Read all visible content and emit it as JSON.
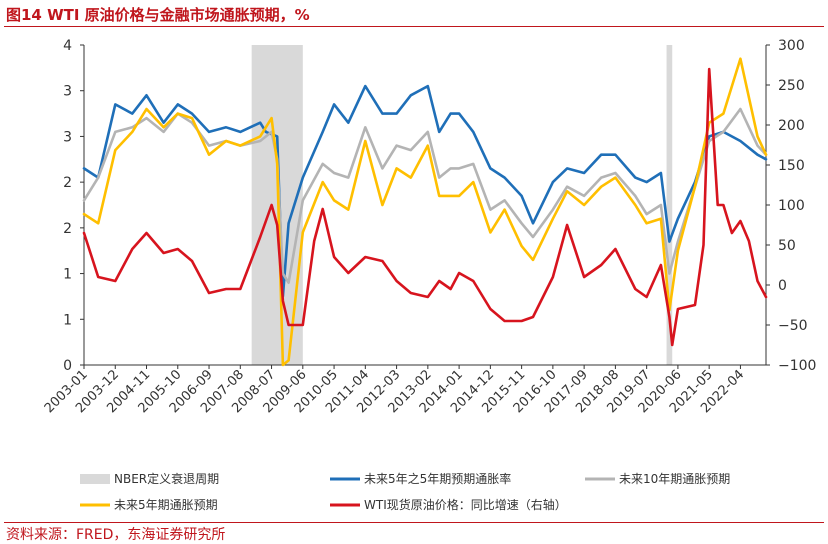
{
  "header": {
    "title": "图14 WTI 原油价格与金融市场通胀预期，%"
  },
  "footer": {
    "source": "资料来源：FRED，东海证券研究所"
  },
  "chart_data": {
    "type": "line",
    "x_tick_labels": [
      "2003-01",
      "2003-12",
      "2004-11",
      "2005-10",
      "2006-09",
      "2007-08",
      "2008-07",
      "2009-06",
      "2010-05",
      "2011-04",
      "2012-03",
      "2013-02",
      "2014-01",
      "2014-12",
      "2015-11",
      "2016-10",
      "2017-09",
      "2018-08",
      "2019-07",
      "2020-06",
      "2021-05",
      "2022-04"
    ],
    "x_range": [
      "2003-01",
      "2023-01"
    ],
    "y_left": {
      "ticks": [
        "0",
        "1",
        "1",
        "2",
        "2",
        "3",
        "3",
        "4"
      ],
      "ylim": [
        0,
        3.5
      ]
    },
    "y_right": {
      "ticks": [
        "−100",
        "−50",
        "0",
        "50",
        "100",
        "150",
        "200",
        "250",
        "300"
      ],
      "ylim": [
        -100,
        300
      ]
    },
    "recessions": [
      {
        "start": "2007-12",
        "end": "2009-06"
      },
      {
        "start": "2020-02",
        "end": "2020-04"
      }
    ],
    "legend": {
      "nber": "NBER定义衰退周期",
      "s1": "未来5年之5年期预期通胀率",
      "s2": "未来10年期通胀预期",
      "s3": "未来5年期通胀预期",
      "s4": "WTI现货原油价格：同比增速（右轴）"
    },
    "colors": {
      "nber": "#d9d9d9",
      "s1": "#1f6fb8",
      "s2": "#b4b4b4",
      "s3": "#ffbf00",
      "s4": "#d7141e"
    },
    "series": [
      {
        "key": "s1",
        "axis": "left",
        "points": [
          [
            "2003-01",
            2.15
          ],
          [
            "2003-06",
            2.05
          ],
          [
            "2003-12",
            2.85
          ],
          [
            "2004-06",
            2.75
          ],
          [
            "2004-11",
            2.95
          ],
          [
            "2005-05",
            2.65
          ],
          [
            "2005-10",
            2.85
          ],
          [
            "2006-03",
            2.75
          ],
          [
            "2006-09",
            2.55
          ],
          [
            "2007-03",
            2.6
          ],
          [
            "2007-08",
            2.55
          ],
          [
            "2008-03",
            2.65
          ],
          [
            "2008-05",
            2.55
          ],
          [
            "2008-09",
            2.5
          ],
          [
            "2008-11",
            0.75
          ],
          [
            "2009-01",
            1.55
          ],
          [
            "2009-06",
            2.05
          ],
          [
            "2010-01",
            2.55
          ],
          [
            "2010-05",
            2.85
          ],
          [
            "2010-10",
            2.65
          ],
          [
            "2011-04",
            3.05
          ],
          [
            "2011-10",
            2.75
          ],
          [
            "2012-03",
            2.75
          ],
          [
            "2012-08",
            2.95
          ],
          [
            "2013-02",
            3.05
          ],
          [
            "2013-06",
            2.55
          ],
          [
            "2013-10",
            2.75
          ],
          [
            "2014-01",
            2.75
          ],
          [
            "2014-06",
            2.55
          ],
          [
            "2014-12",
            2.15
          ],
          [
            "2015-05",
            2.05
          ],
          [
            "2015-11",
            1.85
          ],
          [
            "2016-03",
            1.55
          ],
          [
            "2016-10",
            2.0
          ],
          [
            "2017-03",
            2.15
          ],
          [
            "2017-09",
            2.1
          ],
          [
            "2018-03",
            2.3
          ],
          [
            "2018-08",
            2.3
          ],
          [
            "2019-03",
            2.05
          ],
          [
            "2019-07",
            2.0
          ],
          [
            "2019-12",
            2.1
          ],
          [
            "2020-03",
            1.35
          ],
          [
            "2020-06",
            1.6
          ],
          [
            "2020-12",
            2.0
          ],
          [
            "2021-05",
            2.5
          ],
          [
            "2021-10",
            2.55
          ],
          [
            "2022-04",
            2.45
          ],
          [
            "2022-10",
            2.3
          ],
          [
            "2023-01",
            2.25
          ]
        ]
      },
      {
        "key": "s2",
        "axis": "left",
        "points": [
          [
            "2003-01",
            1.8
          ],
          [
            "2003-06",
            2.05
          ],
          [
            "2003-12",
            2.55
          ],
          [
            "2004-06",
            2.6
          ],
          [
            "2004-11",
            2.7
          ],
          [
            "2005-05",
            2.55
          ],
          [
            "2005-10",
            2.75
          ],
          [
            "2006-03",
            2.65
          ],
          [
            "2006-09",
            2.4
          ],
          [
            "2007-03",
            2.45
          ],
          [
            "2007-08",
            2.4
          ],
          [
            "2008-03",
            2.45
          ],
          [
            "2008-07",
            2.55
          ],
          [
            "2008-09",
            2.25
          ],
          [
            "2008-11",
            1.0
          ],
          [
            "2009-01",
            0.9
          ],
          [
            "2009-06",
            1.8
          ],
          [
            "2010-01",
            2.2
          ],
          [
            "2010-05",
            2.1
          ],
          [
            "2010-10",
            2.05
          ],
          [
            "2011-04",
            2.6
          ],
          [
            "2011-10",
            2.15
          ],
          [
            "2012-03",
            2.4
          ],
          [
            "2012-08",
            2.35
          ],
          [
            "2013-02",
            2.55
          ],
          [
            "2013-06",
            2.05
          ],
          [
            "2013-10",
            2.15
          ],
          [
            "2014-01",
            2.15
          ],
          [
            "2014-06",
            2.2
          ],
          [
            "2014-12",
            1.7
          ],
          [
            "2015-05",
            1.8
          ],
          [
            "2015-11",
            1.55
          ],
          [
            "2016-03",
            1.4
          ],
          [
            "2016-10",
            1.7
          ],
          [
            "2017-03",
            1.95
          ],
          [
            "2017-09",
            1.85
          ],
          [
            "2018-03",
            2.05
          ],
          [
            "2018-08",
            2.1
          ],
          [
            "2019-03",
            1.85
          ],
          [
            "2019-07",
            1.65
          ],
          [
            "2019-12",
            1.75
          ],
          [
            "2020-03",
            1.0
          ],
          [
            "2020-06",
            1.35
          ],
          [
            "2020-12",
            1.95
          ],
          [
            "2021-05",
            2.45
          ],
          [
            "2021-10",
            2.55
          ],
          [
            "2022-04",
            2.8
          ],
          [
            "2022-10",
            2.4
          ],
          [
            "2023-01",
            2.3
          ]
        ]
      },
      {
        "key": "s3",
        "axis": "left",
        "points": [
          [
            "2003-01",
            1.65
          ],
          [
            "2003-06",
            1.55
          ],
          [
            "2003-12",
            2.35
          ],
          [
            "2004-06",
            2.55
          ],
          [
            "2004-11",
            2.8
          ],
          [
            "2005-05",
            2.6
          ],
          [
            "2005-10",
            2.75
          ],
          [
            "2006-03",
            2.7
          ],
          [
            "2006-09",
            2.3
          ],
          [
            "2007-03",
            2.45
          ],
          [
            "2007-08",
            2.4
          ],
          [
            "2008-03",
            2.5
          ],
          [
            "2008-07",
            2.7
          ],
          [
            "2008-09",
            2.2
          ],
          [
            "2008-11",
            0.0
          ],
          [
            "2009-01",
            0.05
          ],
          [
            "2009-06",
            1.45
          ],
          [
            "2010-01",
            2.0
          ],
          [
            "2010-05",
            1.8
          ],
          [
            "2010-10",
            1.7
          ],
          [
            "2011-04",
            2.45
          ],
          [
            "2011-10",
            1.75
          ],
          [
            "2012-03",
            2.15
          ],
          [
            "2012-08",
            2.05
          ],
          [
            "2013-02",
            2.4
          ],
          [
            "2013-06",
            1.85
          ],
          [
            "2013-10",
            1.85
          ],
          [
            "2014-01",
            1.85
          ],
          [
            "2014-06",
            2.0
          ],
          [
            "2014-12",
            1.45
          ],
          [
            "2015-05",
            1.7
          ],
          [
            "2015-11",
            1.3
          ],
          [
            "2016-03",
            1.15
          ],
          [
            "2016-10",
            1.6
          ],
          [
            "2017-03",
            1.9
          ],
          [
            "2017-09",
            1.75
          ],
          [
            "2018-03",
            1.95
          ],
          [
            "2018-08",
            2.05
          ],
          [
            "2019-03",
            1.75
          ],
          [
            "2019-07",
            1.55
          ],
          [
            "2019-12",
            1.6
          ],
          [
            "2020-03",
            0.6
          ],
          [
            "2020-06",
            1.25
          ],
          [
            "2020-12",
            1.95
          ],
          [
            "2021-05",
            2.65
          ],
          [
            "2021-10",
            2.75
          ],
          [
            "2022-04",
            3.35
          ],
          [
            "2022-10",
            2.5
          ],
          [
            "2023-01",
            2.3
          ]
        ]
      },
      {
        "key": "s4",
        "axis": "right",
        "points": [
          [
            "2003-01",
            65
          ],
          [
            "2003-06",
            10
          ],
          [
            "2003-12",
            5
          ],
          [
            "2004-06",
            45
          ],
          [
            "2004-11",
            65
          ],
          [
            "2005-05",
            40
          ],
          [
            "2005-10",
            45
          ],
          [
            "2006-03",
            30
          ],
          [
            "2006-09",
            -10
          ],
          [
            "2007-03",
            -5
          ],
          [
            "2007-08",
            -5
          ],
          [
            "2008-03",
            60
          ],
          [
            "2008-07",
            100
          ],
          [
            "2008-09",
            75
          ],
          [
            "2008-11",
            -20
          ],
          [
            "2009-01",
            -50
          ],
          [
            "2009-06",
            -50
          ],
          [
            "2009-10",
            55
          ],
          [
            "2010-01",
            95
          ],
          [
            "2010-05",
            35
          ],
          [
            "2010-10",
            15
          ],
          [
            "2011-04",
            35
          ],
          [
            "2011-10",
            30
          ],
          [
            "2012-03",
            5
          ],
          [
            "2012-08",
            -10
          ],
          [
            "2013-02",
            -15
          ],
          [
            "2013-06",
            5
          ],
          [
            "2013-10",
            -5
          ],
          [
            "2014-01",
            15
          ],
          [
            "2014-06",
            5
          ],
          [
            "2014-12",
            -30
          ],
          [
            "2015-05",
            -45
          ],
          [
            "2015-11",
            -45
          ],
          [
            "2016-03",
            -40
          ],
          [
            "2016-10",
            10
          ],
          [
            "2017-03",
            75
          ],
          [
            "2017-09",
            10
          ],
          [
            "2018-03",
            25
          ],
          [
            "2018-08",
            45
          ],
          [
            "2019-03",
            -5
          ],
          [
            "2019-07",
            -15
          ],
          [
            "2019-12",
            25
          ],
          [
            "2020-03",
            -40
          ],
          [
            "2020-04",
            -75
          ],
          [
            "2020-06",
            -30
          ],
          [
            "2020-12",
            -25
          ],
          [
            "2021-03",
            50
          ],
          [
            "2021-05",
            270
          ],
          [
            "2021-08",
            100
          ],
          [
            "2021-10",
            100
          ],
          [
            "2022-01",
            65
          ],
          [
            "2022-04",
            80
          ],
          [
            "2022-07",
            55
          ],
          [
            "2022-10",
            5
          ],
          [
            "2023-01",
            -15
          ]
        ]
      }
    ]
  }
}
